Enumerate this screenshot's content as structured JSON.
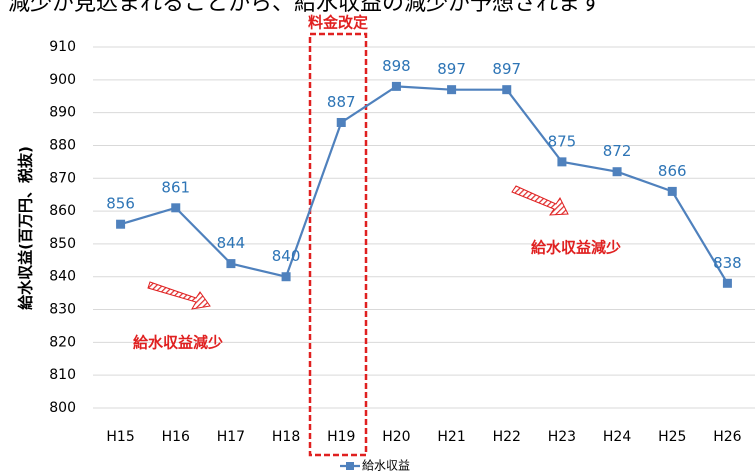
{
  "chart_data": {
    "type": "line",
    "subtitle": "減少が見込まれることから、給水収益の減少が予想されます",
    "y_label": "給水収益(百万円、税抜)",
    "categories": [
      "H15",
      "H16",
      "H17",
      "H18",
      "H19",
      "H20",
      "H21",
      "H22",
      "H23",
      "H24",
      "H25",
      "H26"
    ],
    "series": [
      {
        "name": "給水収益",
        "color": "#4f81bd",
        "values": [
          856,
          861,
          844,
          840,
          887,
          898,
          897,
          897,
          875,
          872,
          866,
          838
        ]
      }
    ],
    "ylim": [
      800,
      910
    ],
    "yticks": [
      800,
      810,
      820,
      830,
      840,
      850,
      860,
      870,
      880,
      890,
      900,
      910
    ],
    "grid": true,
    "annotations": [
      "料金改定",
      "給水収益減少",
      "給水収益減少"
    ],
    "legend": "bottom"
  }
}
